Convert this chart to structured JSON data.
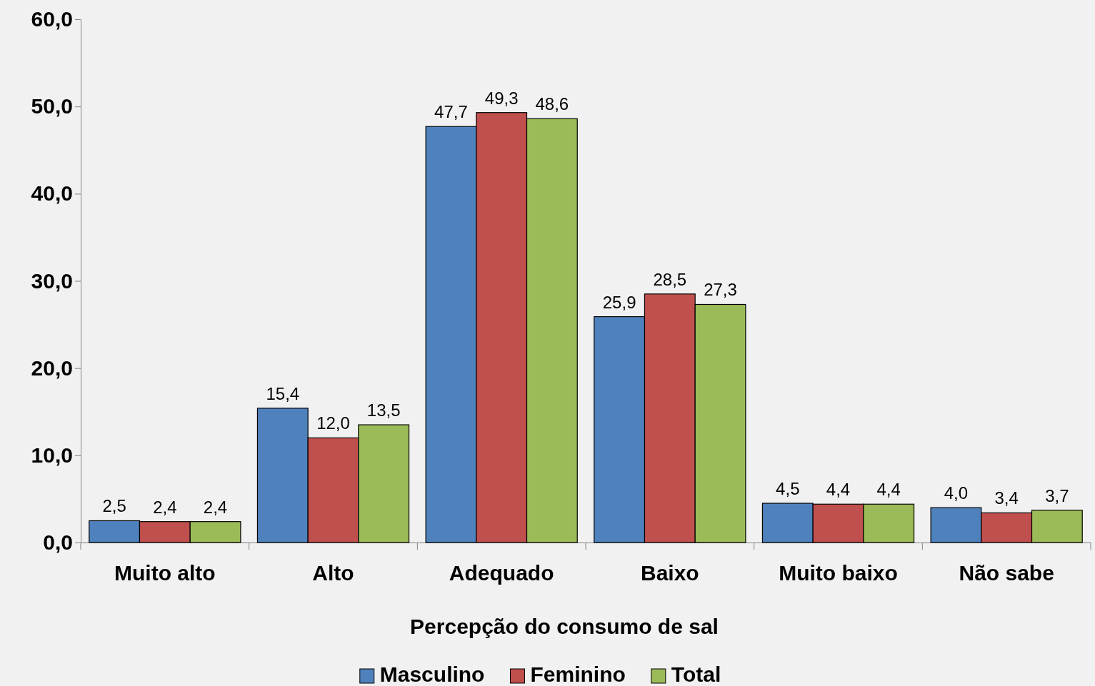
{
  "chart_data": {
    "type": "bar",
    "xlabel": "Percepção do consumo de sal",
    "categories": [
      "Muito alto",
      "Alto",
      "Adequado",
      "Baixo",
      "Muito baixo",
      "Não sabe"
    ],
    "series": [
      {
        "name": "Masculino",
        "color": "#4f81bd",
        "values": [
          2.5,
          15.4,
          47.7,
          25.9,
          4.5,
          4.0
        ],
        "value_labels": [
          "2,5",
          "15,4",
          "47,7",
          "25,9",
          "4,5",
          "4,0"
        ]
      },
      {
        "name": "Feminino",
        "color": "#c0504d",
        "values": [
          2.4,
          12.0,
          49.3,
          28.5,
          4.4,
          3.4
        ],
        "value_labels": [
          "2,4",
          "12,0",
          "49,3",
          "28,5",
          "4,4",
          "3,4"
        ]
      },
      {
        "name": "Total",
        "color": "#9bbb59",
        "values": [
          2.4,
          13.5,
          48.6,
          27.3,
          4.4,
          3.7
        ],
        "value_labels": [
          "2,4",
          "13,5",
          "48,6",
          "27,3",
          "4,4",
          "3,7"
        ]
      }
    ],
    "ylim": [
      0,
      60
    ],
    "yticks": [
      {
        "value": 0,
        "label": "0,0"
      },
      {
        "value": 10,
        "label": "10,0"
      },
      {
        "value": 20,
        "label": "20,0"
      },
      {
        "value": 30,
        "label": "30,0"
      },
      {
        "value": 40,
        "label": "40,0"
      },
      {
        "value": 50,
        "label": "50,0"
      },
      {
        "value": 60,
        "label": "60,0"
      }
    ],
    "legend": "bottom"
  }
}
